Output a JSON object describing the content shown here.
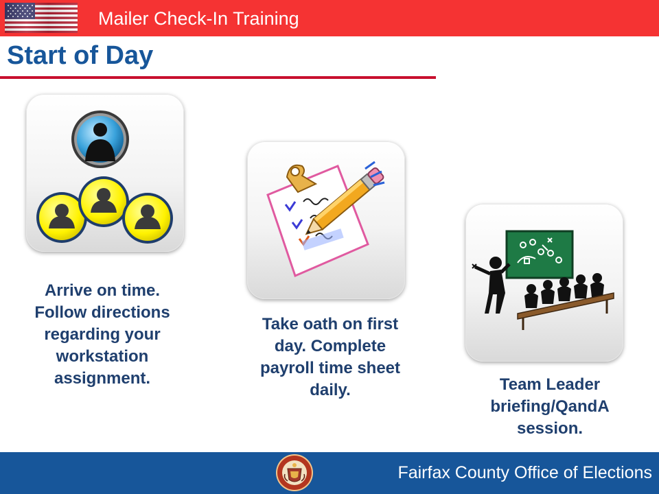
{
  "header": {
    "title": "Mailer Check-In Training"
  },
  "slide": {
    "title": "Start of Day"
  },
  "steps": [
    {
      "icon": "people-group-icon",
      "caption": "Arrive on time. Follow directions regarding your workstation assignment."
    },
    {
      "icon": "clipboard-pencil-icon",
      "caption": "Take oath on first day. Complete payroll time sheet daily."
    },
    {
      "icon": "classroom-chalkboard-icon",
      "caption": "Team Leader briefing/QandA session."
    }
  ],
  "footer": {
    "organization": "Fairfax County Office of Elections",
    "seal_text": "COUNTY OF FAIRFAX VIRGINIA 1742"
  },
  "colors": {
    "header_bar": "#f53333",
    "title_blue": "#17569a",
    "rule_red": "#c8102e",
    "caption_navy": "#1f3f6e",
    "footer_bar": "#17569a"
  }
}
